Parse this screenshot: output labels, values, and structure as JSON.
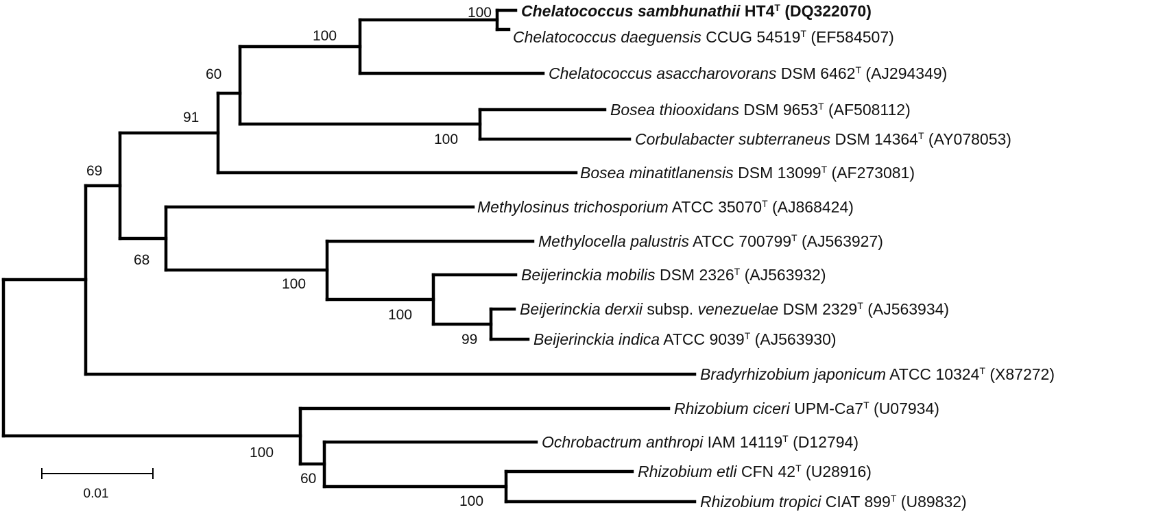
{
  "tree": {
    "taxa": [
      {
        "species": "Chelatococcus sambhunathii",
        "strain": "HT4",
        "type_mark": "T",
        "accession": "(DQ322070)",
        "highlight": true
      },
      {
        "species": "Chelatococcus daeguensis",
        "strain": "CCUG 54519",
        "type_mark": "T",
        "accession": "(EF584507)"
      },
      {
        "species": "Chelatococcus asaccharovorans",
        "strain": "DSM 6462",
        "type_mark": "T",
        "accession": "(AJ294349)"
      },
      {
        "species": "Bosea thiooxidans",
        "strain": "DSM 9653",
        "type_mark": "T",
        "accession": "(AF508112)"
      },
      {
        "species": "Corbulabacter subterraneus",
        "strain": "DSM 14364",
        "type_mark": "T",
        "accession": "(AY078053)"
      },
      {
        "species": "Bosea minatitlanensis",
        "strain": "DSM 13099",
        "type_mark": "T",
        "accession": "(AF273081)"
      },
      {
        "species": "Methylosinus trichosporium",
        "strain": "ATCC 35070",
        "type_mark": "T",
        "accession": "(AJ868424)"
      },
      {
        "species": "Methylocella palustris",
        "strain": "ATCC 700799",
        "type_mark": "T",
        "accession": "(AJ563927)"
      },
      {
        "species": "Beijerinckia mobilis",
        "strain": "DSM 2326",
        "type_mark": "T",
        "accession": "(AJ563932)"
      },
      {
        "species": "Beijerinckia derxii",
        "subsp_word": "subsp.",
        "subsp_name": "venezuelae",
        "strain": "DSM 2329",
        "type_mark": "T",
        "accession": "(AJ563934)"
      },
      {
        "species": "Beijerinckia indica",
        "strain": "ATCC 9039",
        "type_mark": "T",
        "accession": "(AJ563930)"
      },
      {
        "species": "Bradyrhizobium japonicum",
        "strain": "ATCC 10324",
        "type_mark": "T",
        "accession": "(X87272)"
      },
      {
        "species": "Rhizobium ciceri",
        "strain": "UPM-Ca7",
        "type_mark": "T",
        "accession": "(U07934)"
      },
      {
        "species": "Ochrobactrum anthropi",
        "strain": "IAM 14119",
        "type_mark": "T",
        "accession": "(D12794)"
      },
      {
        "species": "Rhizobium etli",
        "strain": "CFN 42",
        "type_mark": "T",
        "accession": "(U28916)"
      },
      {
        "species": "Rhizobium tropici",
        "strain": "CIAT 899",
        "type_mark": "T",
        "accession": "(U89832)"
      }
    ],
    "bootstrap": [
      "100",
      "100",
      "60",
      "100",
      "91",
      "69",
      "68",
      "100",
      "100",
      "99",
      "100",
      "60",
      "100"
    ],
    "scale_bar": {
      "label": "0.01"
    }
  }
}
